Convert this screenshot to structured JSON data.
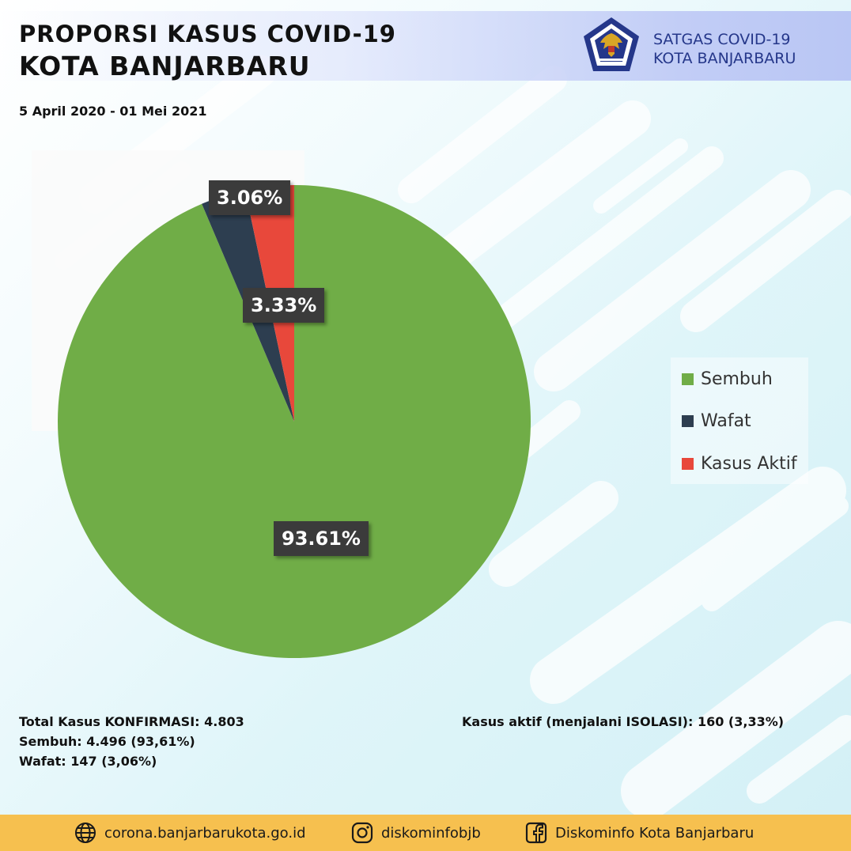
{
  "header": {
    "title_line1": "PROPORSI KASUS COVID-19",
    "title_line2": "KOTA BANJARBARU",
    "date_range": "5 April 2020 - 01 Mei 2021",
    "org_line1": "SATGAS COVID-19",
    "org_line2": "KOTA BANJARBARU",
    "logo_icon": "garuda-emblem-icon"
  },
  "chart_data": {
    "type": "pie",
    "title": "",
    "categories": [
      "Sembuh",
      "Wafat",
      "Kasus Aktif"
    ],
    "values": [
      93.61,
      3.06,
      3.33
    ],
    "labels": [
      "93.61%",
      "3.06%",
      "3.33%"
    ],
    "colors": [
      "#70ad47",
      "#2d3e50",
      "#e8483b"
    ],
    "legend_position": "right"
  },
  "stats": {
    "total": "Total Kasus KONFIRMASI: 4.803",
    "sembuh": "Sembuh: 4.496 (93,61%)",
    "wafat": "Wafat: 147 (3,06%)",
    "aktif": "Kasus aktif (menjalani ISOLASI): 160 (3,33%)"
  },
  "footer": {
    "website": "corona.banjarbarukota.go.id",
    "website_icon": "globe-icon",
    "instagram": "diskominfobjb",
    "instagram_icon": "instagram-icon",
    "facebook": "Diskominfo Kota Banjarbaru",
    "facebook_icon": "facebook-icon",
    "bg_color": "#f6c04f"
  }
}
